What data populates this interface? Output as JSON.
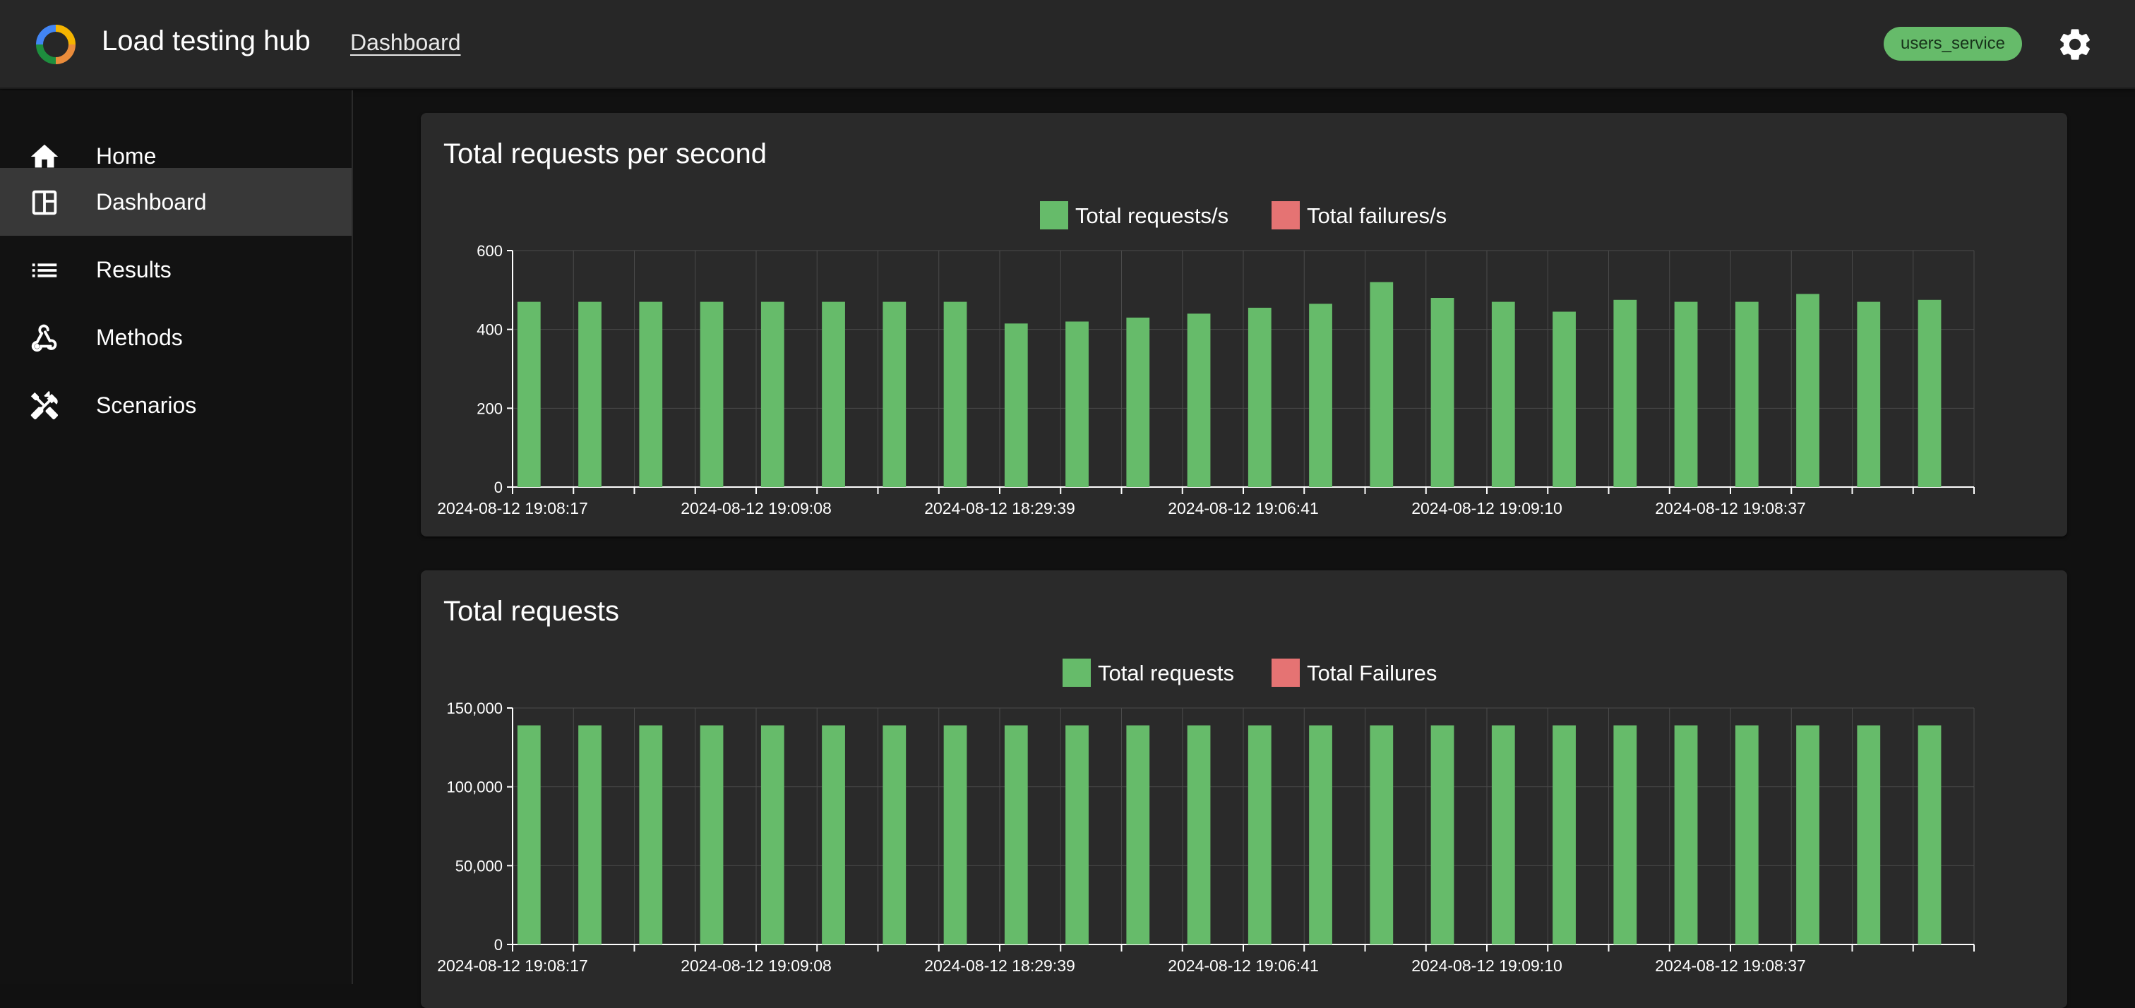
{
  "header": {
    "app_title": "Load testing hub",
    "breadcrumb": "Dashboard",
    "service_badge": "users_service",
    "settings_icon": "gear-icon",
    "logo_icon": "ring-logo-icon"
  },
  "sidebar": {
    "items": [
      {
        "label": "Home",
        "icon": "home-icon",
        "active": false
      },
      {
        "label": "Dashboard",
        "icon": "dashboard-icon",
        "active": true
      },
      {
        "label": "Results",
        "icon": "list-icon",
        "active": false
      },
      {
        "label": "Methods",
        "icon": "webhook-icon",
        "active": false
      },
      {
        "label": "Scenarios",
        "icon": "tools-icon",
        "active": false
      }
    ]
  },
  "colors": {
    "accent_green": "#66bb6a",
    "failure_red": "#e57373",
    "card_bg": "#2a2a2a",
    "page_bg": "#111111"
  },
  "chart_data": [
    {
      "type": "bar",
      "title": "Total requests per second",
      "legend_placement": "top-center",
      "grid": true,
      "ylim": [
        0,
        600
      ],
      "yticks": [
        0,
        200,
        400,
        600
      ],
      "ytick_labels": [
        "0",
        "200",
        "400",
        "600"
      ],
      "xtick_labels": [
        "2024-08-12 19:08:17",
        "2024-08-12 19:09:08",
        "2024-08-12 18:29:39",
        "2024-08-12 19:06:41",
        "2024-08-12 19:09:10",
        "2024-08-12 19:08:37"
      ],
      "series": [
        {
          "name": "Total requests/s",
          "color": "#66bb6a",
          "values": [
            470,
            470,
            470,
            470,
            470,
            470,
            470,
            470,
            415,
            420,
            430,
            440,
            455,
            465,
            520,
            480,
            470,
            445,
            475,
            470,
            470,
            490,
            470,
            475
          ]
        },
        {
          "name": "Total failures/s",
          "color": "#e57373",
          "values": [
            0,
            0,
            0,
            0,
            0,
            0,
            0,
            0,
            0,
            0,
            0,
            0,
            0,
            0,
            0,
            0,
            0,
            0,
            0,
            0,
            0,
            0,
            0,
            0
          ]
        }
      ]
    },
    {
      "type": "bar",
      "title": "Total requests",
      "legend_placement": "top-center",
      "grid": true,
      "ylim": [
        0,
        150000
      ],
      "yticks": [
        0,
        50000,
        100000,
        150000
      ],
      "ytick_labels": [
        "0",
        "50,000",
        "100,000",
        "150,000"
      ],
      "xtick_labels": [
        "2024-08-12 19:08:17",
        "2024-08-12 19:09:08",
        "2024-08-12 18:29:39",
        "2024-08-12 19:06:41",
        "2024-08-12 19:09:10",
        "2024-08-12 19:08:37"
      ],
      "series": [
        {
          "name": "Total requests",
          "color": "#66bb6a",
          "values": [
            139000,
            139000,
            139000,
            139000,
            139000,
            139000,
            139000,
            139000,
            139000,
            139000,
            139000,
            139000,
            139000,
            139000,
            139000,
            139000,
            139000,
            139000,
            139000,
            139000,
            139000,
            139000,
            139000,
            139000
          ]
        },
        {
          "name": "Total Failures",
          "color": "#e57373",
          "values": [
            0,
            0,
            0,
            0,
            0,
            0,
            0,
            0,
            0,
            0,
            0,
            0,
            0,
            0,
            0,
            0,
            0,
            0,
            0,
            0,
            0,
            0,
            0,
            0
          ]
        }
      ]
    }
  ]
}
